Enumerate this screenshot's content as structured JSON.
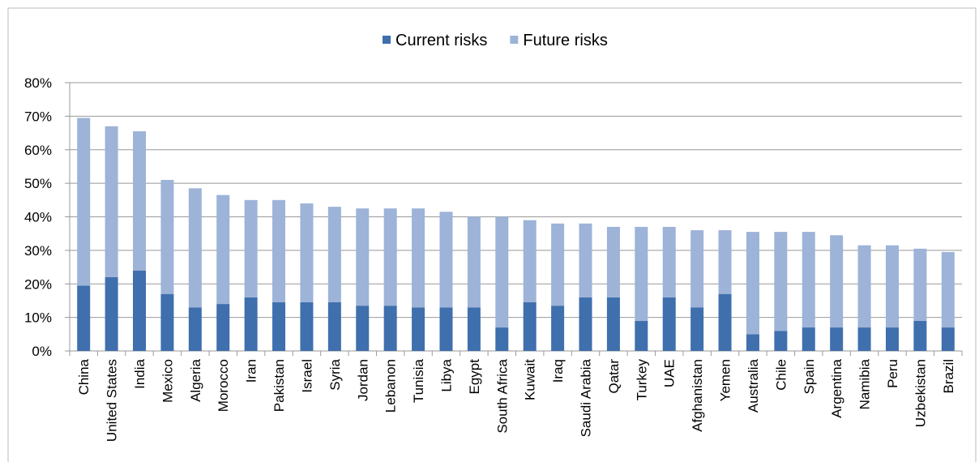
{
  "chart_data": {
    "type": "stacked_bar",
    "categories": [
      "China",
      "United States",
      "India",
      "Mexico",
      "Algeria",
      "Morocco",
      "Iran",
      "Pakistan",
      "Israel",
      "Syria",
      "Jordan",
      "Lebanon",
      "Tunisia",
      "Libya",
      "Egypt",
      "South Africa",
      "Kuwait",
      "Iraq",
      "Saudi Arabia",
      "Qatar",
      "Turkey",
      "UAE",
      "Afghanistan",
      "Yemen",
      "Australia",
      "Chile",
      "Spain",
      "Argentina",
      "Namibia",
      "Peru",
      "Uzbekistan",
      "Brazil"
    ],
    "series": [
      {
        "name": "Current risks",
        "color": "#3f6fad",
        "values": [
          19.5,
          22,
          24,
          17,
          13,
          14,
          16,
          14.5,
          14.5,
          14.5,
          13.5,
          13.5,
          13,
          13,
          13,
          7,
          14.5,
          13.5,
          16,
          16,
          9,
          16,
          13,
          17,
          5,
          6,
          7,
          7,
          7,
          7,
          9,
          7
        ]
      },
      {
        "name": "Future risks",
        "color": "#9db3d8",
        "values": [
          50,
          45,
          41.5,
          34,
          35.5,
          32.5,
          29,
          30.5,
          29.5,
          28.5,
          29,
          29,
          29.5,
          28.5,
          27,
          33,
          24.5,
          24.5,
          22,
          21,
          28,
          21,
          23,
          19,
          30.5,
          29.5,
          28.5,
          27.5,
          24.5,
          24.5,
          21.5,
          22.5
        ]
      }
    ],
    "ylim": [
      0,
      80
    ],
    "yticks": [
      {
        "value": 0,
        "label": "0%"
      },
      {
        "value": 10,
        "label": "10%"
      },
      {
        "value": 20,
        "label": "20%"
      },
      {
        "value": 30,
        "label": "30%"
      },
      {
        "value": 40,
        "label": "40%"
      },
      {
        "value": 50,
        "label": "50%"
      },
      {
        "value": 60,
        "label": "60%"
      },
      {
        "value": 70,
        "label": "70%"
      },
      {
        "value": 80,
        "label": "80%"
      }
    ],
    "grid": true,
    "legend": "top"
  }
}
